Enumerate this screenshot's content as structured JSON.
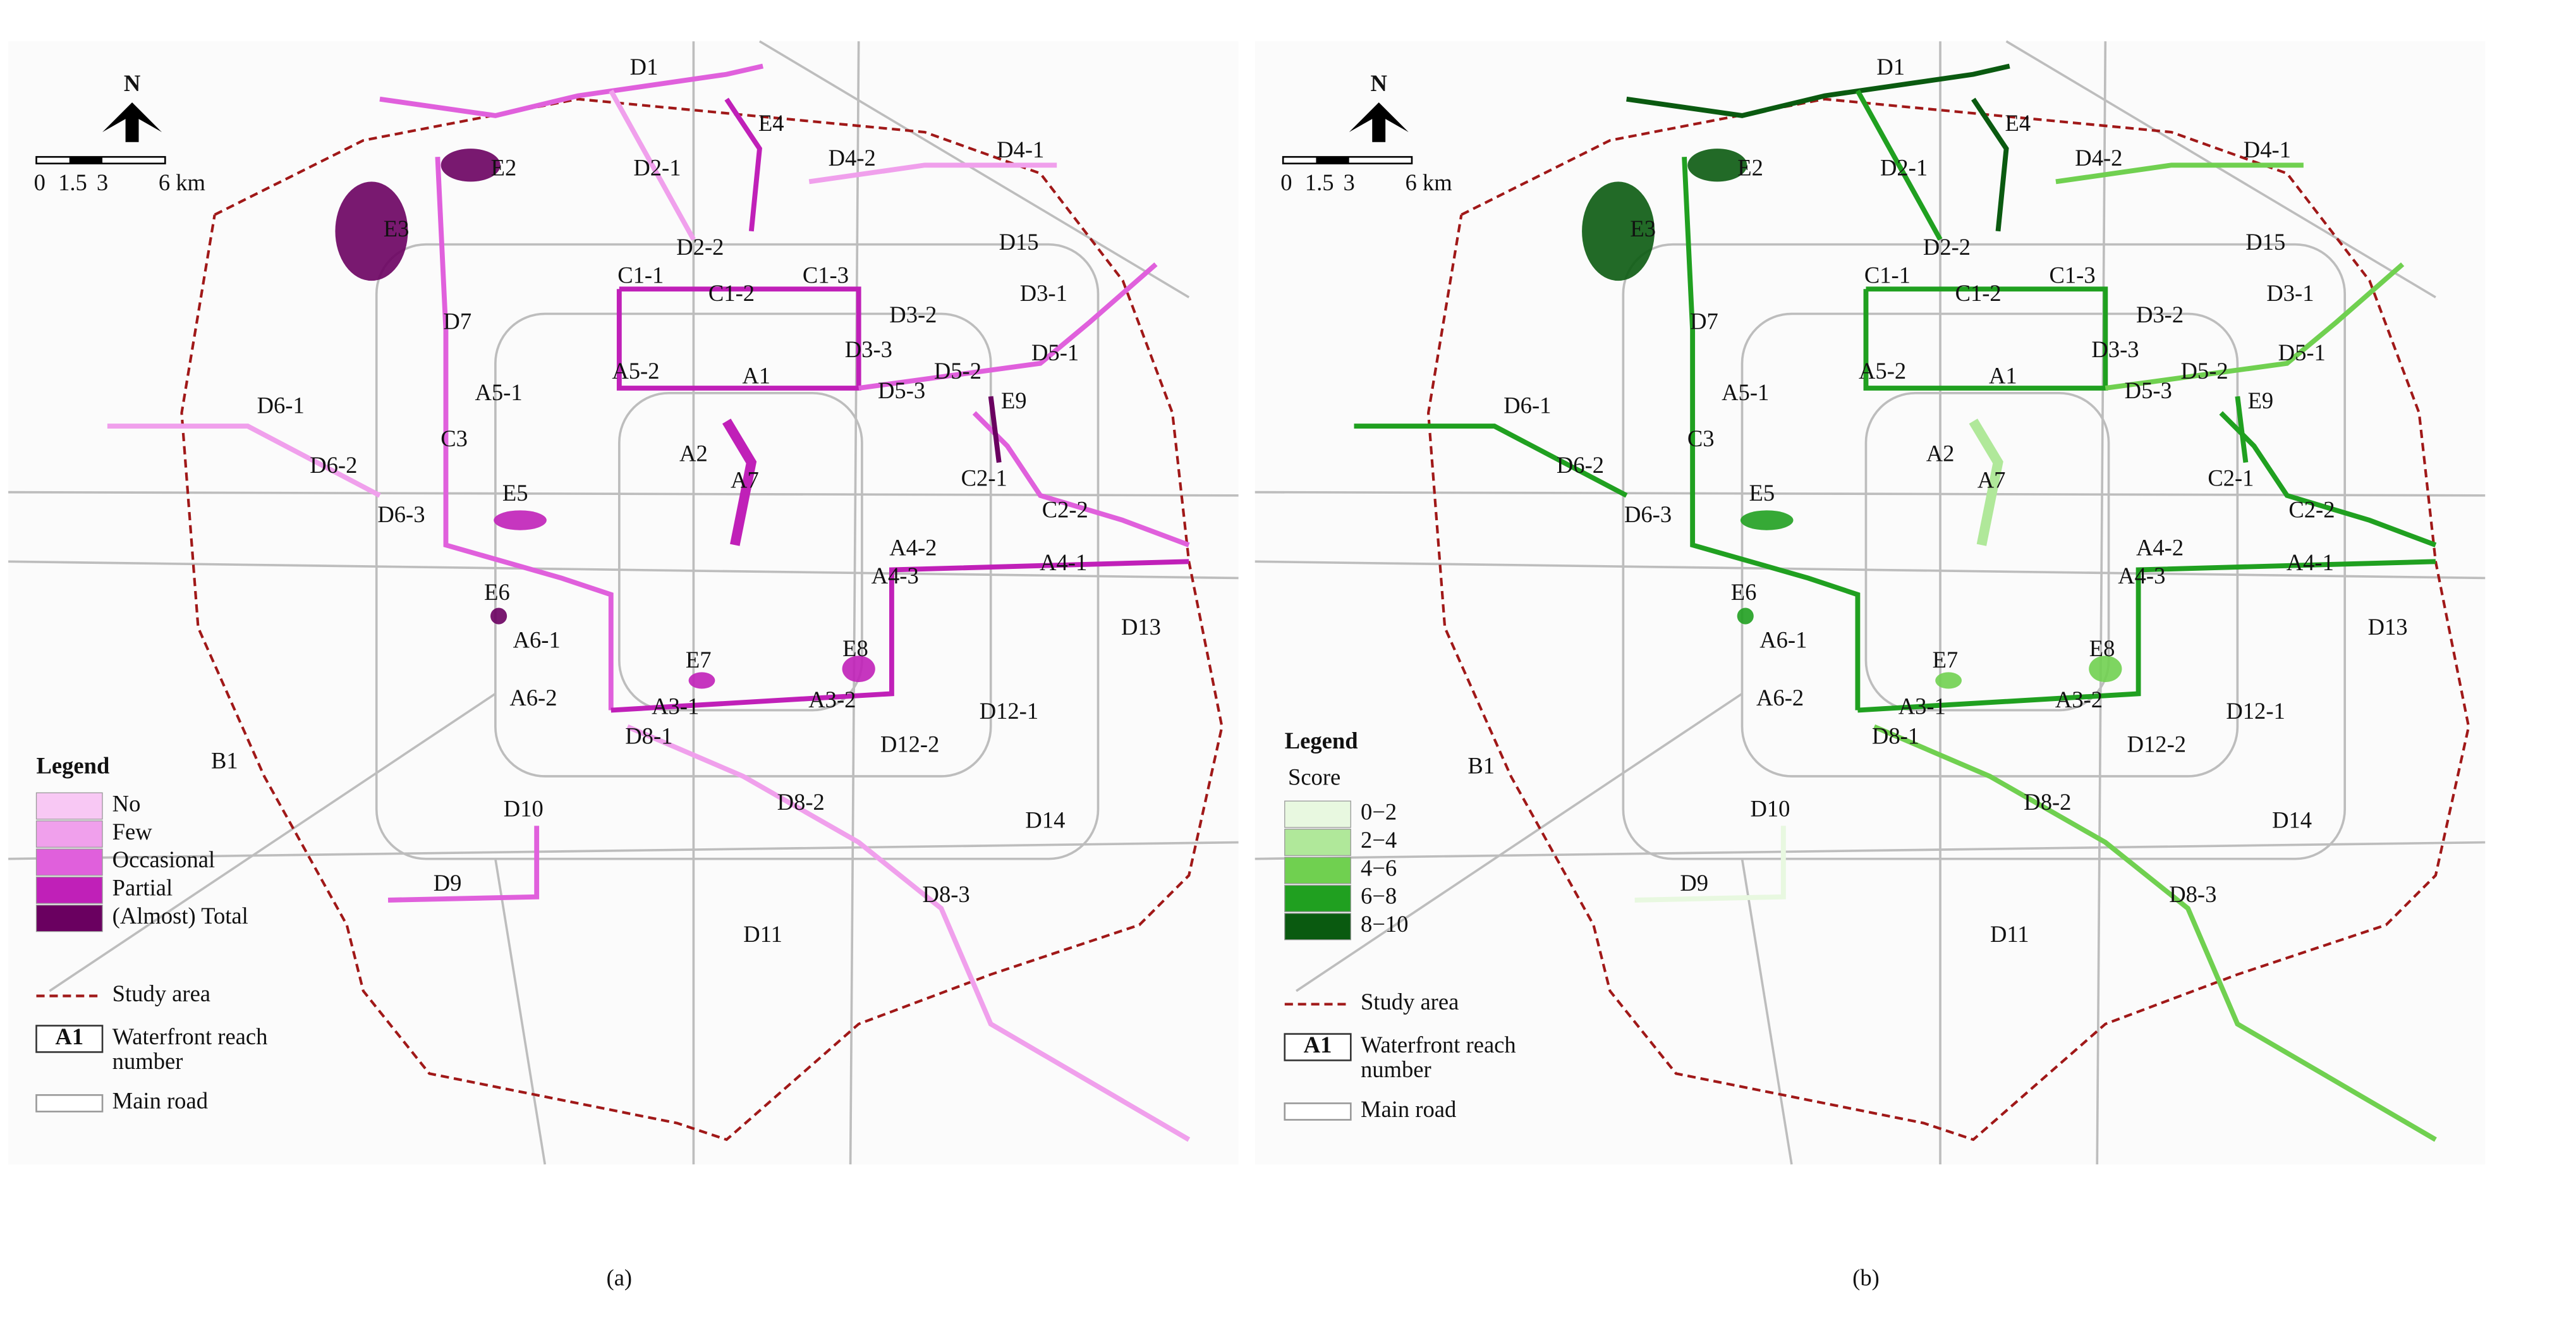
{
  "panels": [
    {
      "label": "(a)",
      "north": "N",
      "scale": [
        "0",
        "1.5",
        "3",
        "6 km"
      ],
      "legend": {
        "title": "Legend",
        "classes": [
          "No",
          "Few",
          "Occasional",
          "Partial",
          "(Almost) Total"
        ],
        "colors": [
          "#f8c8f4",
          "#f0a0ec",
          "#e060dc",
          "#c020b8",
          "#6a0060"
        ]
      },
      "study_area": "Study area",
      "reach_box": "A1",
      "reach_number": [
        "Waterfront reach",
        "number"
      ],
      "main_road": "Main road",
      "reaches": [
        "D1",
        "E4",
        "D2-1",
        "D4-2",
        "D4-1",
        "E2",
        "E3",
        "D2-2",
        "D15",
        "C1-1",
        "C1-2",
        "C1-3",
        "D3-2",
        "D3-1",
        "D7",
        "D3-3",
        "D5-2",
        "D5-1",
        "A5-2",
        "A1",
        "D5-3",
        "E9",
        "A5-1",
        "D6-1",
        "A2",
        "C3",
        "D6-2",
        "A7",
        "C2-1",
        "E5",
        "C2-2",
        "D6-3",
        "A4-2",
        "A4-1",
        "A4-3",
        "E6",
        "A6-1",
        "D13",
        "E7",
        "E8",
        "A6-2",
        "A3-1",
        "A3-2",
        "D12-1",
        "D8-1",
        "B1",
        "D12-2",
        "D8-2",
        "D10",
        "D14",
        "D9",
        "D8-3",
        "D11"
      ]
    },
    {
      "label": "(b)",
      "north": "N",
      "scale": [
        "0",
        "1.5",
        "3",
        "6 km"
      ],
      "legend": {
        "title": "Legend",
        "subtitle": "Score",
        "classes": [
          "0−2",
          "2−4",
          "4−6",
          "6−8",
          "8−10"
        ],
        "colors": [
          "#e8f8e0",
          "#b0e89a",
          "#70d050",
          "#20a020",
          "#0a5a10"
        ]
      },
      "study_area": "Study area",
      "reach_box": "A1",
      "reach_number": [
        "Waterfront reach",
        "number"
      ],
      "main_road": "Main road",
      "reaches": [
        "D1",
        "E4",
        "D2-1",
        "D4-2",
        "D4-1",
        "E2",
        "E3",
        "D2-2",
        "D15",
        "C1-1",
        "C1-2",
        "C1-3",
        "D3-2",
        "D3-1",
        "D7",
        "D3-3",
        "D5-2",
        "D5-1",
        "A5-2",
        "A1",
        "D5-3",
        "E9",
        "A5-1",
        "D6-1",
        "A2",
        "C3",
        "D6-2",
        "A7",
        "C2-1",
        "E5",
        "C2-2",
        "D6-3",
        "A4-2",
        "A4-1",
        "A4-3",
        "E6",
        "A6-1",
        "D13",
        "E7",
        "E8",
        "A6-2",
        "A3-1",
        "A3-2",
        "D12-1",
        "D8-1",
        "B1",
        "D12-2",
        "D8-2",
        "D10",
        "D14",
        "D9",
        "D8-3",
        "D11"
      ]
    }
  ]
}
